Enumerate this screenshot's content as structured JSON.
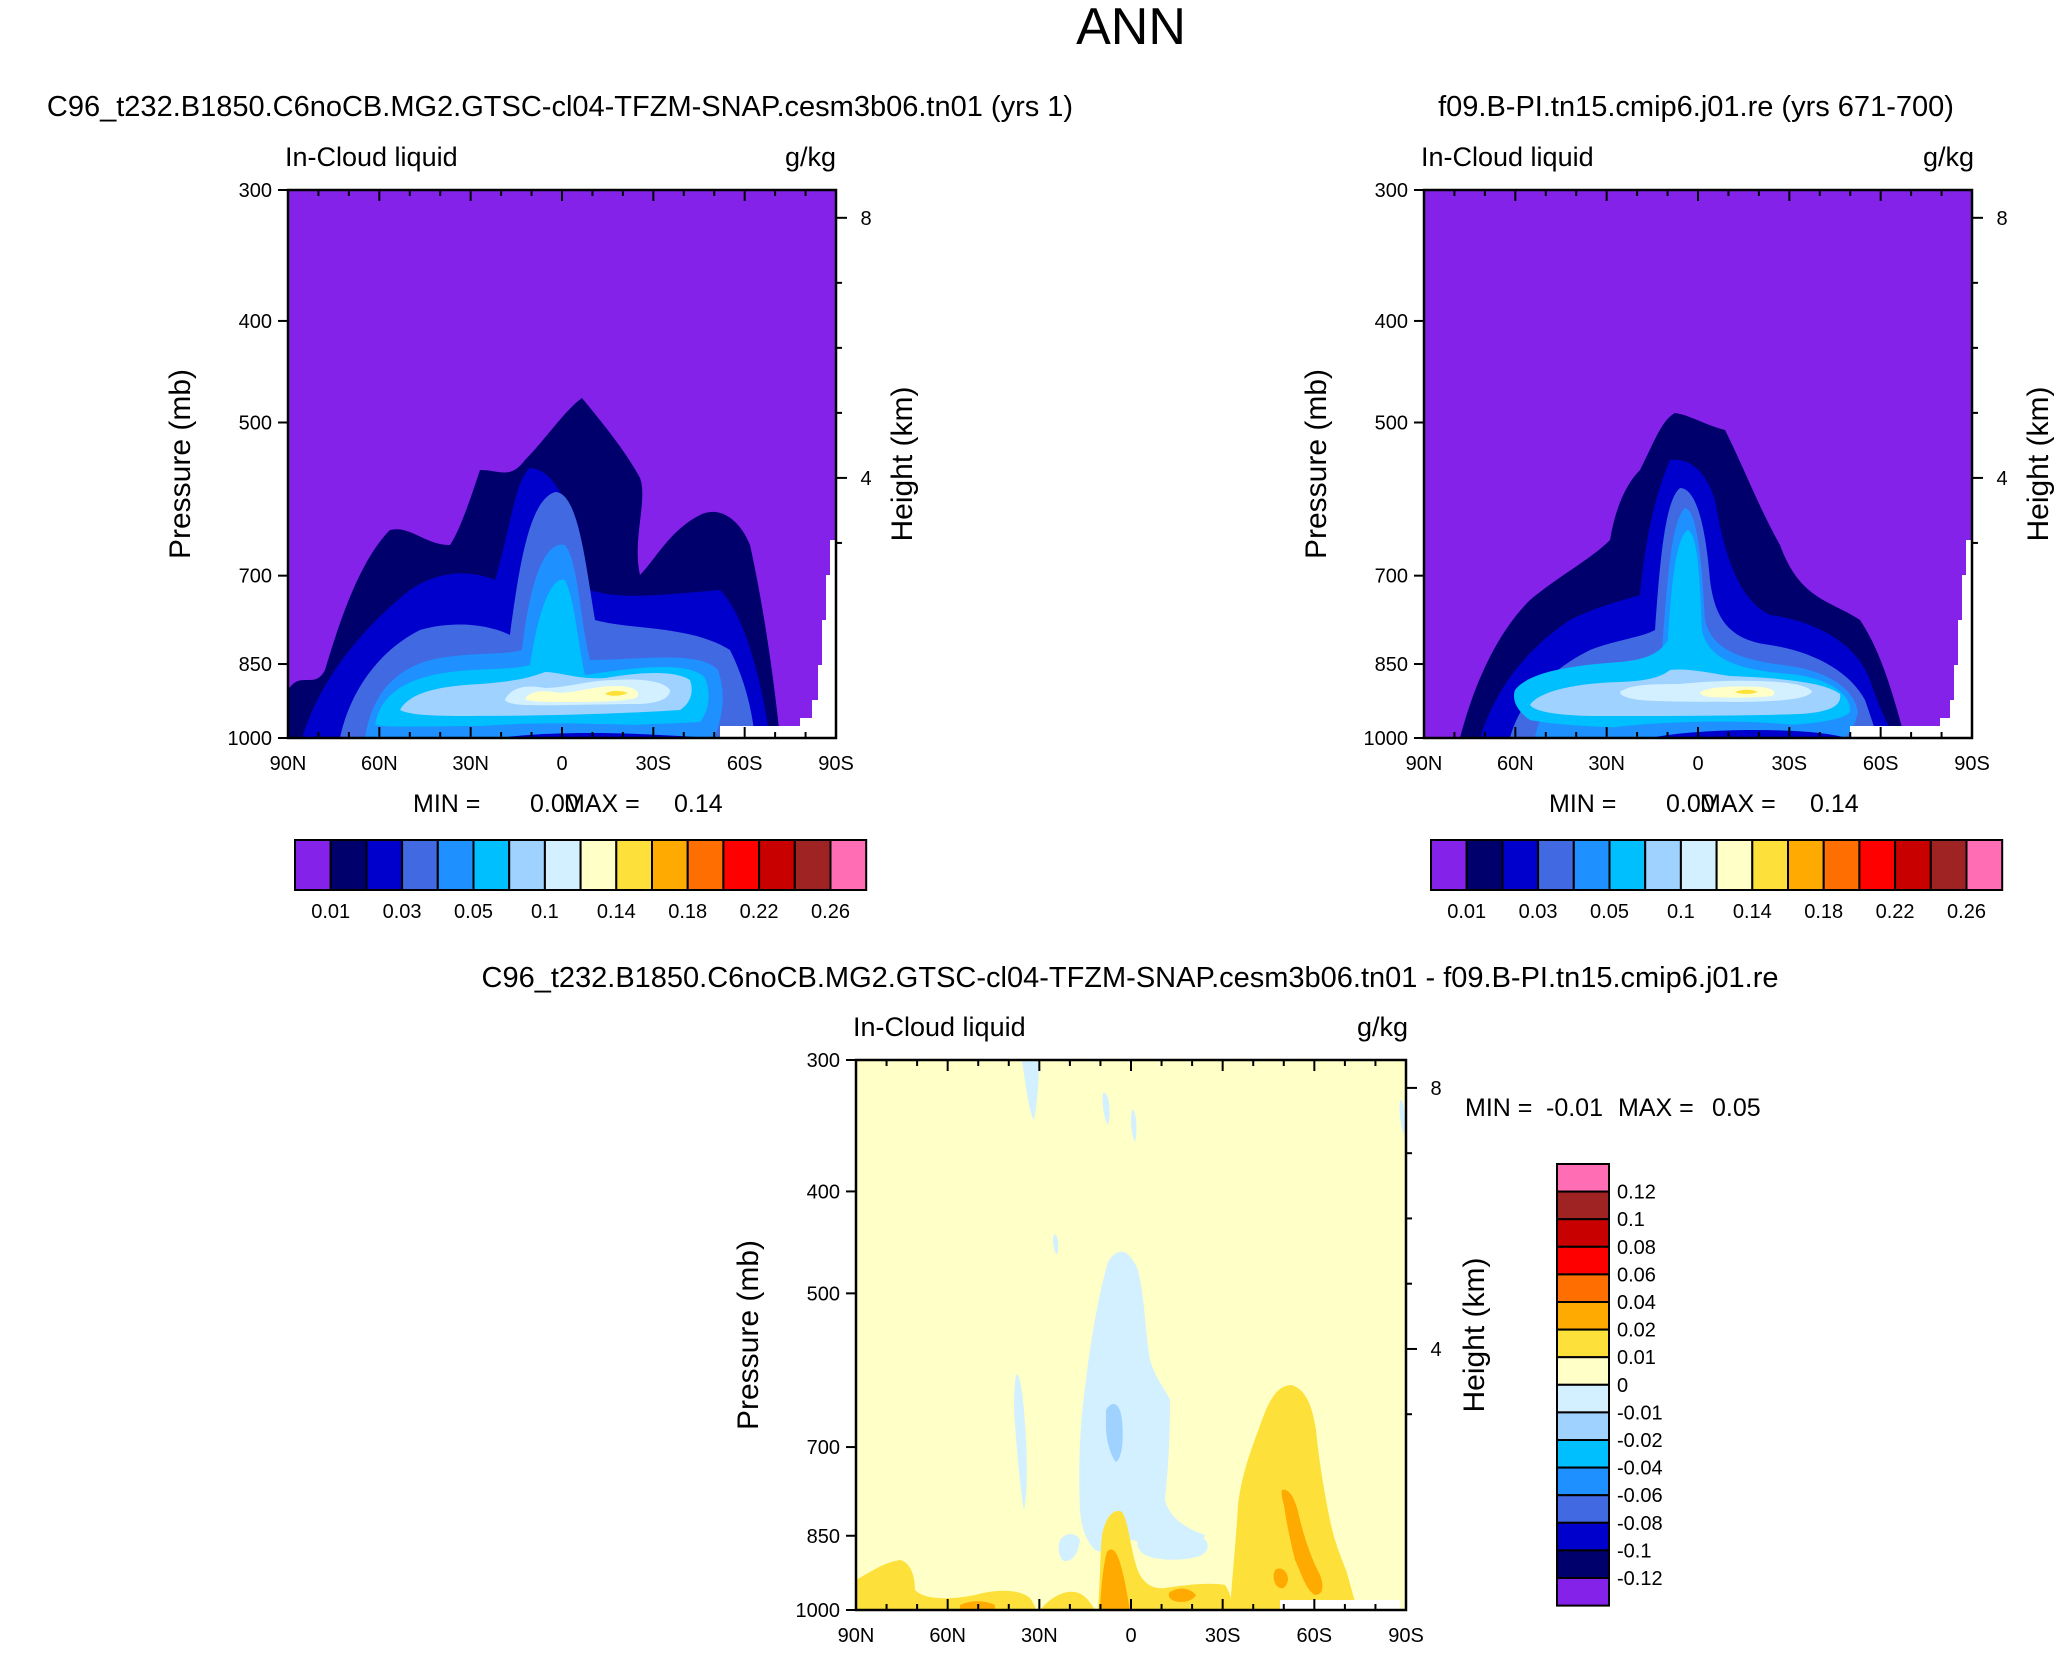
{
  "page": {
    "title": "ANN"
  },
  "colors": {
    "abs_scale": [
      "#8422ea",
      "#00006c",
      "#0000cc",
      "#4169e1",
      "#1e90ff",
      "#00bfff",
      "#a0d2ff",
      "#d2f0ff",
      "#ffffc8",
      "#fde13a",
      "#ffaa00",
      "#ff6e00",
      "#ff0000",
      "#c80000",
      "#a02323",
      "#ff6eb4"
    ],
    "diff_scale": [
      "#8422ea",
      "#00006c",
      "#0000cc",
      "#4169e1",
      "#1e90ff",
      "#00bfff",
      "#a0d2ff",
      "#d2f0ff",
      "#ffffc8",
      "#fde13a",
      "#ffaa00",
      "#ff6e00",
      "#ff0000",
      "#c80000",
      "#a02323",
      "#ff6eb4"
    ]
  },
  "chart_data": [
    {
      "type": "heatmap",
      "id": "test",
      "title": "C96_t232.B1850.C6noCB.MG2.GTSC-cl04-TFZM-SNAP.cesm3b06.tn01 (yrs 1)",
      "variable_label": "In-Cloud liquid",
      "units_label": "g/kg",
      "xlabel": "",
      "ylabel": "Pressure (mb)",
      "y2label": "Height (km)",
      "x_ticks": [
        "90N",
        "60N",
        "30N",
        "0",
        "30S",
        "60S",
        "90S"
      ],
      "x_range": [
        90,
        -90
      ],
      "y_ticks": [
        "300",
        "400",
        "500",
        "700",
        "850",
        "1000"
      ],
      "y_range_mb": [
        300,
        1000
      ],
      "y2_ticks": [
        "8",
        "4"
      ],
      "stats": {
        "min_label": "MIN =",
        "min": "0.00",
        "max_label": "MAX =",
        "max": "0.14"
      },
      "colorbar_labels": [
        "0.01",
        "0.03",
        "0.05",
        "0.1",
        "0.14",
        "0.18",
        "0.22",
        "0.26"
      ],
      "levels": [
        0.01,
        0.02,
        0.03,
        0.04,
        0.05,
        0.07,
        0.1,
        0.12,
        0.14,
        0.16,
        0.18,
        0.2,
        0.22,
        0.24,
        0.26
      ]
    },
    {
      "type": "heatmap",
      "id": "control",
      "title": "f09.B-PI.tn15.cmip6.j01.re (yrs 671-700)",
      "variable_label": "In-Cloud liquid",
      "units_label": "g/kg",
      "xlabel": "",
      "ylabel": "Pressure (mb)",
      "y2label": "Height (km)",
      "x_ticks": [
        "90N",
        "60N",
        "30N",
        "0",
        "30S",
        "60S",
        "90S"
      ],
      "x_range": [
        90,
        -90
      ],
      "y_ticks": [
        "300",
        "400",
        "500",
        "700",
        "850",
        "1000"
      ],
      "y_range_mb": [
        300,
        1000
      ],
      "y2_ticks": [
        "8",
        "4"
      ],
      "stats": {
        "min_label": "MIN =",
        "min": "0.00",
        "max_label": "MAX =",
        "max": "0.14"
      },
      "colorbar_labels": [
        "0.01",
        "0.03",
        "0.05",
        "0.1",
        "0.14",
        "0.18",
        "0.22",
        "0.26"
      ],
      "levels": [
        0.01,
        0.02,
        0.03,
        0.04,
        0.05,
        0.07,
        0.1,
        0.12,
        0.14,
        0.16,
        0.18,
        0.2,
        0.22,
        0.24,
        0.26
      ]
    },
    {
      "type": "heatmap",
      "id": "difference",
      "title": "C96_t232.B1850.C6noCB.MG2.GTSC-cl04-TFZM-SNAP.cesm3b06.tn01 - f09.B-PI.tn15.cmip6.j01.re",
      "variable_label": "In-Cloud liquid",
      "units_label": "g/kg",
      "xlabel": "",
      "ylabel": "Pressure (mb)",
      "y2label": "Height (km)",
      "x_ticks": [
        "90N",
        "60N",
        "30N",
        "0",
        "30S",
        "60S",
        "90S"
      ],
      "x_range": [
        90,
        -90
      ],
      "y_ticks": [
        "300",
        "400",
        "500",
        "700",
        "850",
        "1000"
      ],
      "y_range_mb": [
        300,
        1000
      ],
      "y2_ticks": [
        "8",
        "4"
      ],
      "stats": {
        "min_label": "MIN =",
        "min": "-0.01",
        "max_label": "MAX =",
        "max": "0.05"
      },
      "colorbar_labels": [
        "0.12",
        "0.1",
        "0.08",
        "0.06",
        "0.04",
        "0.02",
        "0.01",
        "0",
        "-0.01",
        "-0.02",
        "-0.04",
        "-0.06",
        "-0.08",
        "-0.1",
        "-0.12"
      ]
    }
  ]
}
